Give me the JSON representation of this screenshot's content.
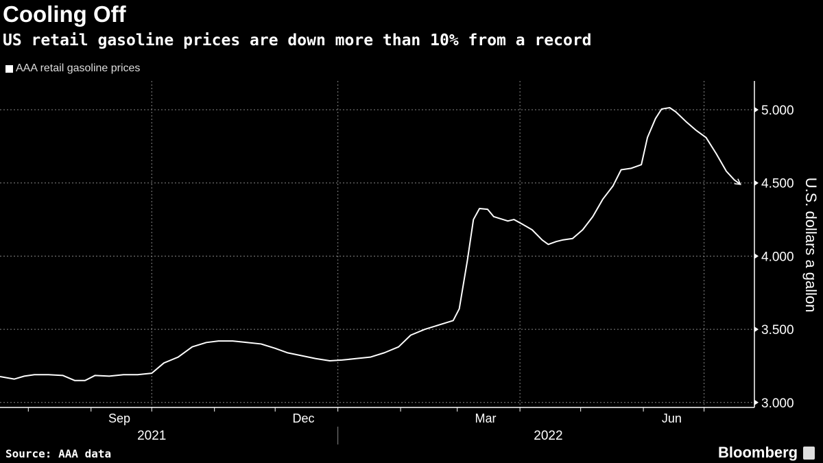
{
  "title": "Cooling Off",
  "subtitle": "US retail gasoline prices are down more than 10% from a record",
  "source": "Source: AAA data",
  "brand": "Bloomberg",
  "chart_data": {
    "type": "line",
    "title": "Cooling Off",
    "xlabel": "",
    "ylabel": "U.S. dollars a gallon",
    "ylim": [
      2.95,
      5.2
    ],
    "yticks": [
      3.0,
      3.5,
      4.0,
      4.5,
      5.0
    ],
    "ytick_labels": [
      "3.000",
      "3.500",
      "4.000",
      "4.500",
      "5.000"
    ],
    "xtick_labels": [
      {
        "label": "Sep",
        "date": "2021-09-15"
      },
      {
        "label": "Dec",
        "date": "2021-12-15"
      },
      {
        "label": "Mar",
        "date": "2022-03-15"
      },
      {
        "label": "Jun",
        "date": "2022-06-15"
      }
    ],
    "year_labels": [
      {
        "label": "2021",
        "date": "2021-10-01"
      },
      {
        "label": "2022",
        "date": "2022-04-15"
      }
    ],
    "grid": "dotted",
    "legend": "top-left",
    "series": [
      {
        "name": "AAA retail gasoline prices",
        "color": "#ffffff",
        "x": [
          "2021-07-18",
          "2021-07-25",
          "2021-07-30",
          "2021-08-04",
          "2021-08-11",
          "2021-08-18",
          "2021-08-24",
          "2021-08-29",
          "2021-09-03",
          "2021-09-10",
          "2021-09-17",
          "2021-09-24",
          "2021-10-01",
          "2021-10-07",
          "2021-10-14",
          "2021-10-21",
          "2021-10-28",
          "2021-11-03",
          "2021-11-10",
          "2021-11-17",
          "2021-11-24",
          "2021-12-01",
          "2021-12-07",
          "2021-12-14",
          "2021-12-21",
          "2021-12-28",
          "2022-01-03",
          "2022-01-10",
          "2022-01-17",
          "2022-01-24",
          "2022-01-31",
          "2022-02-06",
          "2022-02-13",
          "2022-02-20",
          "2022-02-27",
          "2022-03-02",
          "2022-03-06",
          "2022-03-09",
          "2022-03-12",
          "2022-03-16",
          "2022-03-19",
          "2022-03-26",
          "2022-03-29",
          "2022-04-02",
          "2022-04-07",
          "2022-04-12",
          "2022-04-15",
          "2022-04-19",
          "2022-04-22",
          "2022-04-27",
          "2022-05-02",
          "2022-05-07",
          "2022-05-12",
          "2022-05-17",
          "2022-05-21",
          "2022-05-26",
          "2022-05-31",
          "2022-06-03",
          "2022-06-07",
          "2022-06-10",
          "2022-06-14",
          "2022-06-17",
          "2022-06-22",
          "2022-06-27",
          "2022-07-02",
          "2022-07-07",
          "2022-07-12",
          "2022-07-16",
          "2022-07-19"
        ],
        "values": [
          3.177,
          3.16,
          3.18,
          3.19,
          3.19,
          3.185,
          3.15,
          3.15,
          3.185,
          3.18,
          3.19,
          3.19,
          3.2,
          3.27,
          3.31,
          3.38,
          3.41,
          3.42,
          3.42,
          3.41,
          3.4,
          3.37,
          3.34,
          3.32,
          3.3,
          3.285,
          3.29,
          3.3,
          3.31,
          3.34,
          3.38,
          3.46,
          3.5,
          3.53,
          3.56,
          3.64,
          3.97,
          4.25,
          4.325,
          4.32,
          4.27,
          4.24,
          4.25,
          4.22,
          4.18,
          4.11,
          4.08,
          4.1,
          4.11,
          4.12,
          4.18,
          4.27,
          4.39,
          4.48,
          4.59,
          4.6,
          4.625,
          4.81,
          4.94,
          5.005,
          5.014,
          4.986,
          4.92,
          4.86,
          4.81,
          4.7,
          4.58,
          4.52,
          4.49
        ]
      }
    ]
  }
}
